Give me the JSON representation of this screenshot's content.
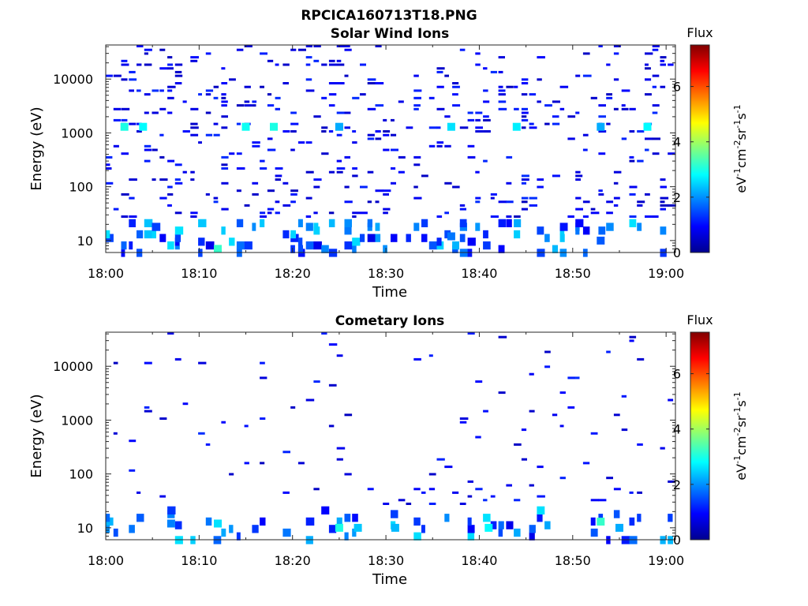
{
  "figure": {
    "title": "RPCICA160713T18.PNG"
  },
  "chart_data": [
    {
      "type": "heatmap",
      "title": "Solar Wind Ions",
      "xlabel": "Time",
      "ylabel": "Energy (eV)",
      "x_range": [
        "18:00",
        "19:01"
      ],
      "x_ticks": [
        "18:00",
        "18:10",
        "18:20",
        "18:30",
        "18:40",
        "18:50",
        "19:00"
      ],
      "y_scale": "log",
      "y_range": [
        6,
        43000
      ],
      "y_ticks": [
        10,
        100,
        1000,
        10000
      ],
      "y_tick_labels": [
        "10",
        "100",
        "1000",
        "10000"
      ],
      "colorbar": {
        "label": "Flux",
        "units_label": "eV-1cm-2sr-1s-1",
        "range": [
          0,
          7.5
        ],
        "ticks": [
          0,
          2,
          4,
          6
        ],
        "tick_labels": [
          "0",
          "2",
          "4",
          "6"
        ],
        "colormap": "jet"
      },
      "density_note": "sparse scattered flux bins, denser at low energy",
      "cells": [
        {
          "t": "18:02",
          "e": 1300,
          "flux": 3.0
        },
        {
          "t": "18:04",
          "e": 1300,
          "flux": 2.8
        },
        {
          "t": "18:12",
          "e": 7,
          "flux": 3.2
        },
        {
          "t": "18:15",
          "e": 1300,
          "flux": 2.9
        },
        {
          "t": "18:18",
          "e": 1300,
          "flux": 3.0
        },
        {
          "t": "18:25",
          "e": 1300,
          "flux": 2.2
        },
        {
          "t": "18:37",
          "e": 1300,
          "flux": 2.6
        },
        {
          "t": "18:44",
          "e": 1300,
          "flux": 2.7
        },
        {
          "t": "18:53",
          "e": 1300,
          "flux": 2.2
        },
        {
          "t": "18:58",
          "e": 1300,
          "flux": 2.8
        },
        {
          "t": "18:37",
          "e": 12,
          "flux": 1.8
        },
        {
          "t": "18:53",
          "e": 10,
          "flux": 1.6
        }
      ]
    },
    {
      "type": "heatmap",
      "title": "Cometary Ions",
      "xlabel": "Time",
      "ylabel": "Energy (eV)",
      "x_range": [
        "18:00",
        "19:01"
      ],
      "x_ticks": [
        "18:00",
        "18:10",
        "18:20",
        "18:30",
        "18:40",
        "18:50",
        "19:00"
      ],
      "y_scale": "log",
      "y_range": [
        6,
        43000
      ],
      "y_ticks": [
        10,
        100,
        1000,
        10000
      ],
      "y_tick_labels": [
        "10",
        "100",
        "1000",
        "10000"
      ],
      "colorbar": {
        "label": "Flux",
        "units_label": "eV-1cm-2sr-1s-1",
        "range": [
          0,
          7.5
        ],
        "ticks": [
          0,
          2,
          4,
          6
        ],
        "tick_labels": [
          "0",
          "2",
          "4",
          "6"
        ],
        "colormap": "jet"
      },
      "density_note": "sparser than solar wind, concentrated below 100 eV",
      "cells": [
        {
          "t": "18:07",
          "e": 12,
          "flux": 1.9
        },
        {
          "t": "18:12",
          "e": 12,
          "flux": 2.6
        },
        {
          "t": "18:25",
          "e": 10,
          "flux": 3.0
        },
        {
          "t": "18:27",
          "e": 10,
          "flux": 2.4
        },
        {
          "t": "18:31",
          "e": 10,
          "flux": 2.3
        },
        {
          "t": "18:41",
          "e": 10,
          "flux": 2.8
        },
        {
          "t": "18:53",
          "e": 13,
          "flux": 3.2
        },
        {
          "t": "18:55",
          "e": 10,
          "flux": 2.2
        }
      ]
    }
  ]
}
